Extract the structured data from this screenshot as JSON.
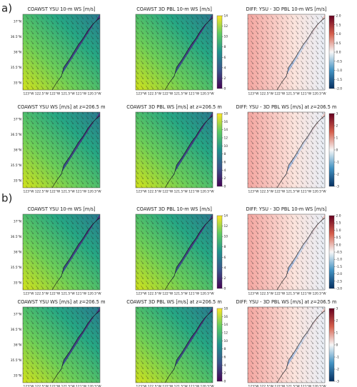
{
  "sections": [
    {
      "label": "a)",
      "panels": [
        {
          "title": "COAWST YSU 10-m WS [m/s]",
          "kind": "ws"
        },
        {
          "title": "COAWST 3D PBL 10-m WS [m/s]",
          "kind": "ws",
          "colorbar": [
            0,
            2,
            4,
            6,
            8,
            10,
            12,
            14
          ]
        },
        {
          "title": "DIFF: YSU - 3D PBL 10-m WS [m/s]",
          "kind": "diff",
          "colorbar": [
            {
              "value": -2,
              "label": "-2.0"
            },
            -1.5,
            {
              "value": -1,
              "label": "-1.0"
            },
            -0.5,
            {
              "value": 0,
              "label": "0.0"
            },
            0.5,
            {
              "value": 1,
              "label": "1.0"
            },
            1.5,
            {
              "value": 2,
              "label": "2.0"
            }
          ]
        },
        {
          "title": "COAWST YSU WS [m/s] at z=206.5 m",
          "kind": "ws"
        },
        {
          "title": "COAWST 3D PBL WS [m/s] at z=206.5 m",
          "kind": "ws",
          "colorbar": [
            0,
            2,
            4,
            6,
            8,
            10,
            12,
            14,
            16,
            18
          ]
        },
        {
          "title": "DIFF: YSU - 3D PBL WS [m/s] at z=206.5 m",
          "kind": "diff",
          "colorbar": [
            -3,
            -2,
            -1,
            0,
            1,
            2,
            3
          ]
        }
      ]
    },
    {
      "label": "b)",
      "panels": [
        {
          "title": "COAWST YSU 10-m WS [m/s]",
          "kind": "ws"
        },
        {
          "title": "COAWST 3D PBL 10-m WS [m/s]",
          "kind": "ws",
          "colorbar": [
            0,
            2,
            4,
            6,
            8,
            10,
            12,
            14
          ]
        },
        {
          "title": "DIFF: YSU - 3D PBL 10-m WS [m/s]",
          "kind": "diff",
          "colorbar": [
            {
              "value": -3,
              "label": "-3.0"
            },
            -2.5,
            {
              "value": -2,
              "label": "-2.0"
            },
            -1.5,
            {
              "value": -1,
              "label": "-1.0"
            },
            -0.5,
            {
              "value": 0,
              "label": "0.0"
            },
            0.5,
            {
              "value": 1,
              "label": "1.0"
            },
            1.5,
            {
              "value": 2,
              "label": "2.0"
            }
          ]
        },
        {
          "title": "COAWST YSU WS [m/s] at z=206.5 m",
          "kind": "ws"
        },
        {
          "title": "COAWST 3D PBL WS [m/s] at z=206.5 m",
          "kind": "ws",
          "colorbar": [
            0,
            2,
            4,
            6,
            8,
            10,
            12,
            14,
            16,
            18
          ]
        },
        {
          "title": "DIFF: YSU - 3D PBL WS [m/s] at z=206.5 m",
          "kind": "diff",
          "colorbar": [
            -3,
            -2,
            -1,
            0,
            1,
            2,
            3
          ]
        }
      ]
    }
  ],
  "lat_labels": [
    "37°N",
    "36.5°N",
    "36°N",
    "35.5°N",
    "35°N"
  ],
  "lon_labels": [
    "123°W",
    "122.5°W",
    "122°W",
    "121.5°W",
    "121°W",
    "120.5°W"
  ]
}
